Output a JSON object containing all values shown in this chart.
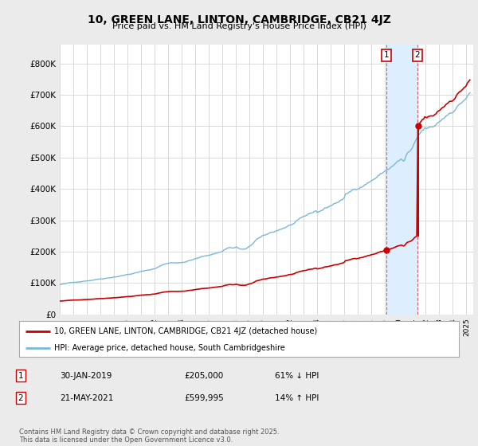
{
  "title": "10, GREEN LANE, LINTON, CAMBRIDGE, CB21 4JZ",
  "subtitle": "Price paid vs. HM Land Registry's House Price Index (HPI)",
  "yticks": [
    0,
    100000,
    200000,
    300000,
    400000,
    500000,
    600000,
    700000,
    800000
  ],
  "ytick_labels": [
    "£0",
    "£100K",
    "£200K",
    "£300K",
    "£400K",
    "£500K",
    "£600K",
    "£700K",
    "£800K"
  ],
  "xlim_start": 1995.0,
  "xlim_end": 2025.5,
  "ylim_min": 0,
  "ylim_max": 860000,
  "hpi_color": "#7ab8d8",
  "price_color": "#cc0000",
  "shade_color": "#ddeeff",
  "bg_color": "#ebebeb",
  "plot_bg": "#ffffff",
  "transaction1_date": 2019.08,
  "transaction1_price": 205000,
  "transaction2_date": 2021.38,
  "transaction2_price": 599995,
  "legend_label1": "10, GREEN LANE, LINTON, CAMBRIDGE, CB21 4JZ (detached house)",
  "legend_label2": "HPI: Average price, detached house, South Cambridgeshire",
  "table_row1": [
    "1",
    "30-JAN-2019",
    "£205,000",
    "61% ↓ HPI"
  ],
  "table_row2": [
    "2",
    "21-MAY-2021",
    "£599,995",
    "14% ↑ HPI"
  ],
  "footer": "Contains HM Land Registry data © Crown copyright and database right 2025.\nThis data is licensed under the Open Government Licence v3.0."
}
